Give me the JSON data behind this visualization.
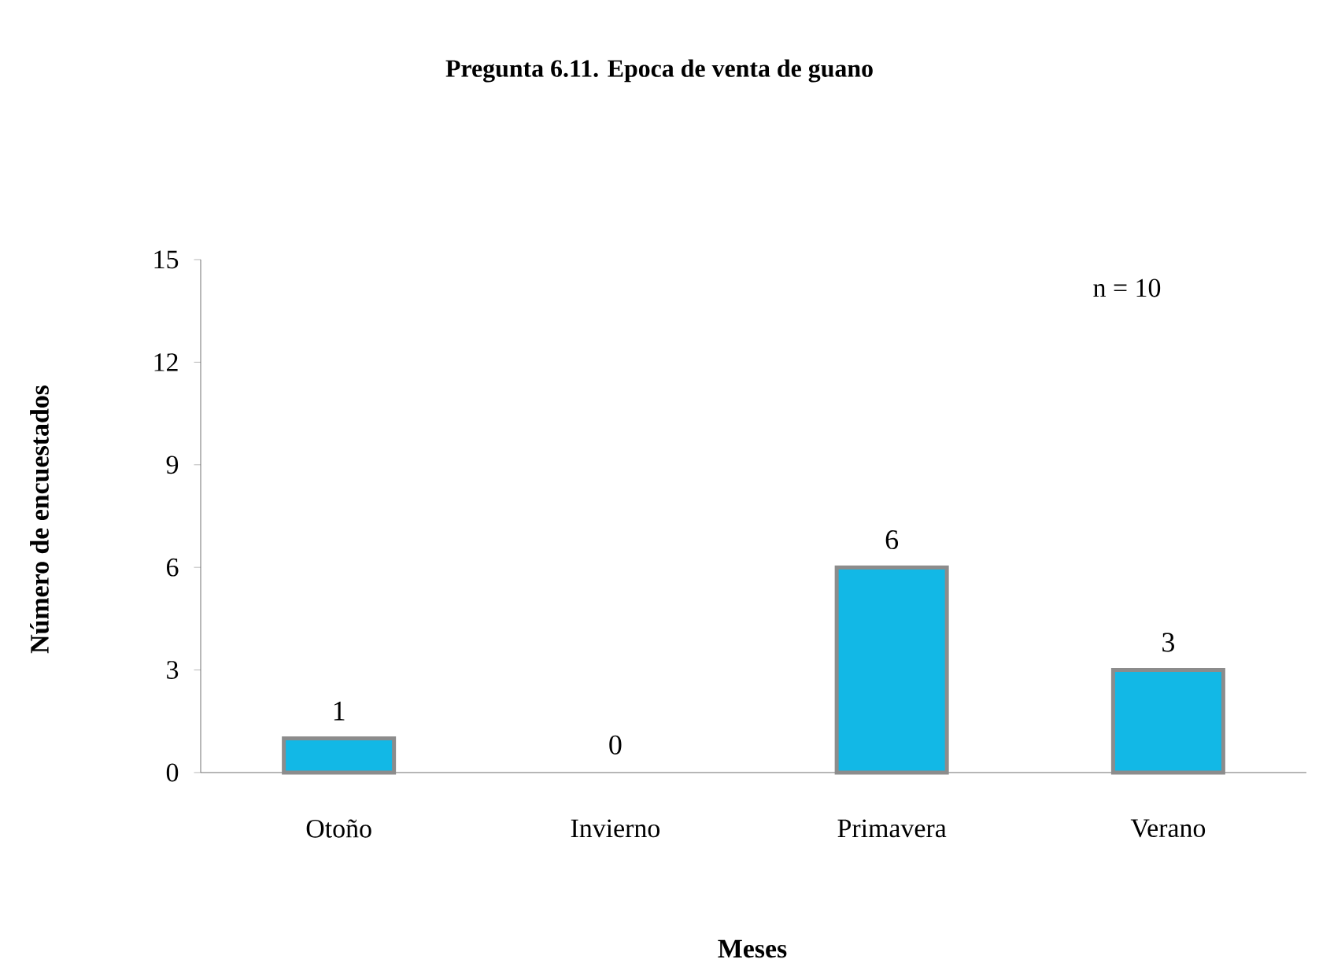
{
  "chart_data": {
    "type": "bar",
    "title": "Pregunta 6.11. Epoca de venta de guano",
    "xlabel": "Meses",
    "ylabel": "Número de encuestados",
    "categories": [
      "Otoño",
      "Invierno",
      "Primavera",
      "Verano"
    ],
    "values": [
      1,
      0,
      6,
      3
    ],
    "color": "#12b8e6",
    "ylim": [
      0,
      15
    ],
    "yticks": [
      0,
      3,
      6,
      9,
      12,
      15
    ],
    "data_labels": true,
    "grid": false,
    "annotations": [
      "n = 10"
    ]
  }
}
